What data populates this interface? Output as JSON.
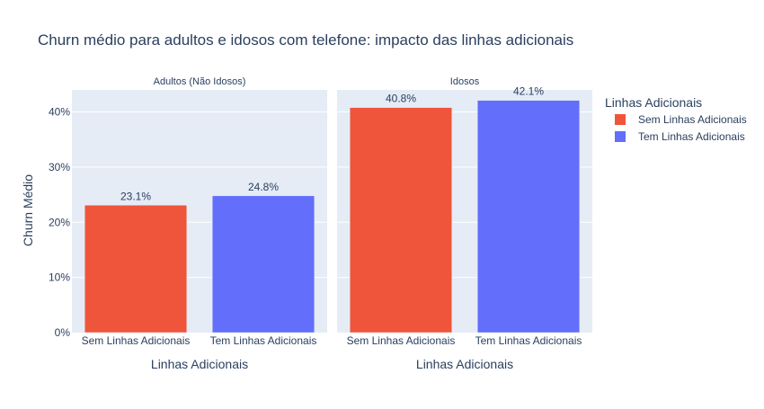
{
  "chart_data": {
    "type": "bar",
    "title": "Churn médio para adultos e idosos com telefone: impacto das linhas adicionais",
    "ylabel": "Churn Médio",
    "xlabel": "Linhas Adicionais",
    "ylim": [
      0,
      0.44
    ],
    "y_ticks": [
      {
        "value": 0,
        "label": "0%"
      },
      {
        "value": 0.1,
        "label": "10%"
      },
      {
        "value": 0.2,
        "label": "20%"
      },
      {
        "value": 0.3,
        "label": "30%"
      },
      {
        "value": 0.4,
        "label": "40%"
      }
    ],
    "grid": true,
    "legend": {
      "title": "Linhas Adicionais",
      "placement": "right",
      "entries": [
        {
          "name": "Sem Linhas Adicionais",
          "color": "#EF553B"
        },
        {
          "name": "Tem Linhas Adicionais",
          "color": "#636EFA"
        }
      ]
    },
    "categories": [
      "Sem Linhas Adicionais",
      "Tem Linhas Adicionais"
    ],
    "panels": [
      {
        "title": "Adultos (Não Idosos)",
        "values": [
          0.231,
          0.248
        ],
        "labels": [
          "23.1%",
          "24.8%"
        ]
      },
      {
        "title": "Idosos",
        "values": [
          0.408,
          0.421
        ],
        "labels": [
          "40.8%",
          "42.1%"
        ]
      }
    ]
  }
}
